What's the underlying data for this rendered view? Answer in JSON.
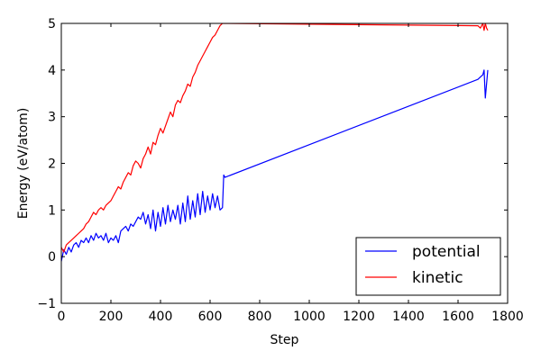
{
  "chart_data": {
    "type": "line",
    "title": "",
    "xlabel": "Step",
    "ylabel": "Energy (eV/atom)",
    "xlim": [
      0,
      1800
    ],
    "ylim": [
      -1,
      5
    ],
    "xticks": [
      0,
      200,
      400,
      600,
      800,
      1000,
      1200,
      1400,
      1600,
      1800
    ],
    "yticks": [
      -1,
      0,
      1,
      2,
      3,
      4,
      5
    ],
    "grid": false,
    "legend_position": "lower-right",
    "series": [
      {
        "name": "potential",
        "color": "#0000ff",
        "x": [
          0,
          10,
          20,
          30,
          40,
          50,
          60,
          70,
          80,
          90,
          100,
          110,
          120,
          130,
          140,
          150,
          160,
          170,
          180,
          190,
          200,
          210,
          220,
          230,
          240,
          250,
          260,
          270,
          280,
          290,
          300,
          310,
          320,
          330,
          340,
          350,
          360,
          370,
          380,
          390,
          400,
          410,
          420,
          430,
          440,
          450,
          460,
          470,
          480,
          490,
          500,
          510,
          520,
          530,
          540,
          550,
          560,
          570,
          580,
          590,
          600,
          610,
          620,
          630,
          640,
          650,
          655,
          660,
          1680,
          1690,
          1700,
          1705,
          1710,
          1715,
          1720
        ],
        "y": [
          -0.1,
          0.15,
          0.05,
          0.2,
          0.1,
          0.25,
          0.3,
          0.2,
          0.35,
          0.3,
          0.4,
          0.3,
          0.45,
          0.35,
          0.5,
          0.4,
          0.45,
          0.35,
          0.5,
          0.3,
          0.4,
          0.35,
          0.45,
          0.3,
          0.55,
          0.6,
          0.65,
          0.55,
          0.7,
          0.65,
          0.75,
          0.85,
          0.8,
          0.95,
          0.7,
          0.9,
          0.6,
          1.0,
          0.55,
          0.95,
          0.65,
          1.05,
          0.7,
          1.1,
          0.75,
          1.0,
          0.8,
          1.1,
          0.7,
          1.15,
          0.75,
          1.3,
          0.8,
          1.2,
          0.85,
          1.35,
          0.9,
          1.4,
          0.95,
          1.3,
          1.0,
          1.35,
          1.05,
          1.3,
          1.0,
          1.05,
          1.75,
          1.7,
          3.8,
          3.85,
          3.9,
          4.0,
          3.4,
          3.7,
          4.0
        ]
      },
      {
        "name": "kinetic",
        "color": "#ff0000",
        "x": [
          0,
          10,
          20,
          30,
          40,
          50,
          60,
          70,
          80,
          90,
          100,
          110,
          120,
          130,
          140,
          150,
          160,
          170,
          180,
          190,
          200,
          210,
          220,
          230,
          240,
          250,
          260,
          270,
          280,
          290,
          300,
          310,
          320,
          330,
          340,
          350,
          360,
          370,
          380,
          390,
          400,
          410,
          420,
          430,
          440,
          450,
          460,
          470,
          480,
          490,
          500,
          510,
          520,
          530,
          540,
          550,
          560,
          570,
          580,
          590,
          600,
          610,
          620,
          630,
          640,
          650,
          660,
          1680,
          1690,
          1700,
          1705,
          1710,
          1715,
          1720
        ],
        "y": [
          0.2,
          0.1,
          0.25,
          0.3,
          0.35,
          0.4,
          0.45,
          0.5,
          0.55,
          0.6,
          0.7,
          0.75,
          0.85,
          0.95,
          0.9,
          1.0,
          1.05,
          1.0,
          1.1,
          1.15,
          1.2,
          1.3,
          1.4,
          1.5,
          1.45,
          1.6,
          1.7,
          1.8,
          1.75,
          1.95,
          2.05,
          2.0,
          1.9,
          2.1,
          2.2,
          2.35,
          2.2,
          2.45,
          2.4,
          2.6,
          2.75,
          2.65,
          2.8,
          2.95,
          3.1,
          3.0,
          3.25,
          3.35,
          3.3,
          3.45,
          3.55,
          3.7,
          3.65,
          3.85,
          3.95,
          4.1,
          4.2,
          4.3,
          4.4,
          4.5,
          4.6,
          4.7,
          4.75,
          4.85,
          4.95,
          5.0,
          5.0,
          4.95,
          4.9,
          5.0,
          4.85,
          5.0,
          4.9,
          4.85
        ]
      }
    ]
  }
}
